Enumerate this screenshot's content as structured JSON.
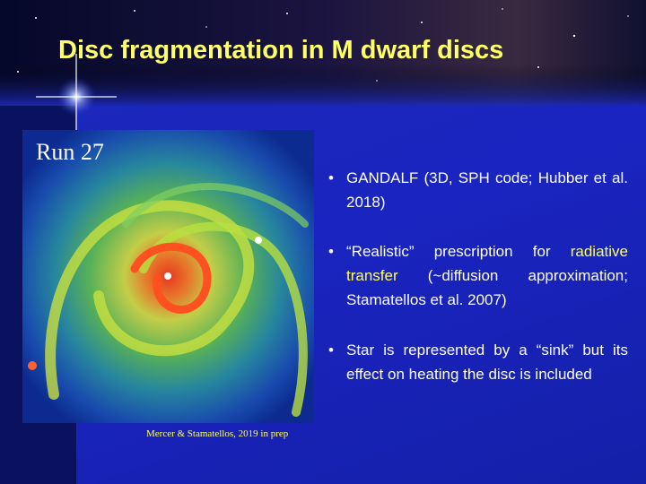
{
  "header": {
    "title": "Disc fragmentation in M dwarf discs"
  },
  "figure": {
    "label": "Run 27",
    "caption": "Mercer & Stamatellos, 2019 in prep"
  },
  "bullets": [
    {
      "parts": [
        "GANDALF (3D, SPH code; Hubber et al. 2018)"
      ]
    },
    {
      "parts": [
        "“Realistic” prescription for ",
        "radiative transfer",
        " (~diffusion approximation; Stamatellos et al. 2007)"
      ]
    },
    {
      "parts": [
        "Star is represented by a “sink” but its effect on heating the disc is included"
      ]
    }
  ]
}
